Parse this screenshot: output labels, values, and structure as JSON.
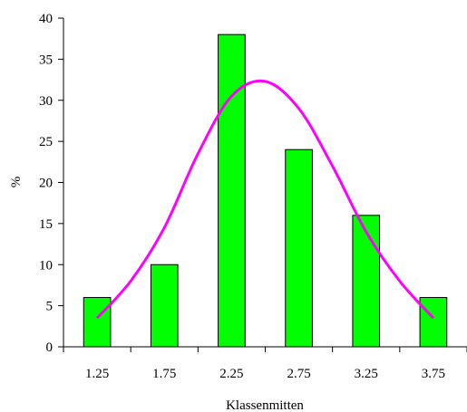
{
  "chart_data": {
    "type": "bar",
    "categories": [
      "1.25",
      "1.75",
      "2.25",
      "2.75",
      "3.25",
      "3.75"
    ],
    "values": [
      6,
      10,
      38,
      24,
      16,
      6
    ],
    "xlabel": "Klassenmitten",
    "ylabel": "%",
    "ylim": [
      0,
      40
    ],
    "yticks": [
      "0",
      "5",
      "10",
      "15",
      "20",
      "25",
      "30",
      "35",
      "40"
    ],
    "bar_color": "#00ff00",
    "bar_edge_color": "#000000",
    "curve": {
      "type": "line",
      "color": "#ff00ff",
      "x": [
        1.25,
        1.5,
        1.75,
        2.0,
        2.25,
        2.5,
        2.75,
        3.0,
        3.25,
        3.5,
        3.75
      ],
      "y": [
        3.5,
        8.0,
        14.5,
        23.5,
        30.5,
        32.3,
        29.0,
        22.0,
        14.0,
        8.0,
        3.5
      ]
    },
    "grid": false,
    "legend": "none"
  }
}
